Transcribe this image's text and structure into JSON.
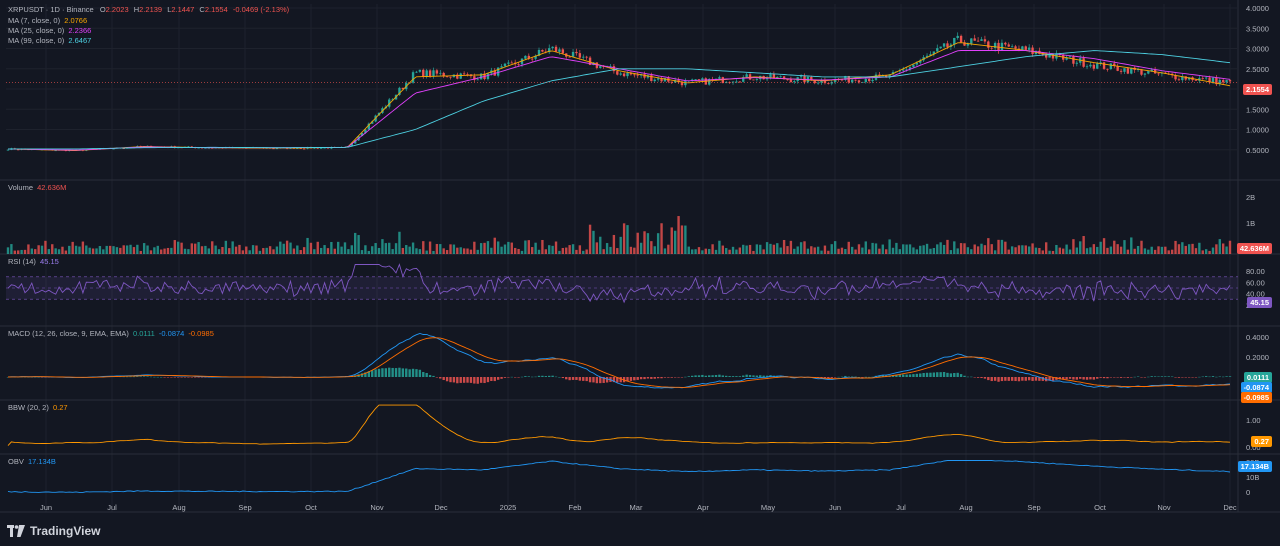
{
  "header": {
    "symbol": "XRPUSDT · 1D · Binance",
    "ohlc": [
      {
        "k": "O",
        "v": "2.2023"
      },
      {
        "k": "H",
        "v": "2.2139"
      },
      {
        "k": "L",
        "v": "2.1447"
      },
      {
        "k": "C",
        "v": "2.1554"
      }
    ],
    "change": "-0.0469 (-2.13%)"
  },
  "ma": [
    {
      "label": "MA (7, close, 0)",
      "value": "2.0766",
      "color": "#f7a600"
    },
    {
      "label": "MA (25, close, 0)",
      "value": "2.2366",
      "color": "#e040fb"
    },
    {
      "label": "MA (99, close, 0)",
      "value": "2.6467",
      "color": "#4dd0e1"
    }
  ],
  "panes": {
    "volume": {
      "label": "Volume",
      "value": "42.636M",
      "tag": "42.636M",
      "ticks": [
        "2B",
        "1B"
      ]
    },
    "rsi": {
      "label": "RSI (14)",
      "value": "45.15",
      "tag": "45.15",
      "ticks": [
        "80.00",
        "60.00",
        "40.00",
        "20.00"
      ]
    },
    "macd": {
      "label": "MACD (12, 26, close, 9, EMA, EMA)",
      "v1": "0.0111",
      "v2": "-0.0874",
      "v3": "-0.0985",
      "tags": [
        "0.0111",
        "-0.0874",
        "-0.0985"
      ],
      "ticks": [
        "0.4000",
        "0.2000",
        "0.0000"
      ]
    },
    "bbw": {
      "label": "BBW (20, 2)",
      "value": "0.27",
      "tag": "0.27",
      "ticks": [
        "1.00",
        "0.00"
      ]
    },
    "obv": {
      "label": "OBV",
      "value": "17.134B",
      "tag": "17.134B",
      "ticks": [
        "20B",
        "10B",
        "0"
      ]
    }
  },
  "price_tag": "2.1554",
  "price_ticks": [
    "4.0000",
    "3.5000",
    "3.0000",
    "2.5000",
    "2.0000",
    "1.5000",
    "1.0000",
    "0.5000"
  ],
  "x_ticks": [
    "Jun",
    "Jul",
    "Aug",
    "Sep",
    "Oct",
    "Nov",
    "Dec",
    "2025",
    "Feb",
    "Mar",
    "Apr",
    "May",
    "Jun",
    "Jul",
    "Aug",
    "Sep",
    "Oct",
    "Nov",
    "Dec"
  ],
  "logo": "TradingView",
  "colors": {
    "up": "#26a69a",
    "down": "#ef5350",
    "bg": "#131722",
    "grid": "#1e222d",
    "text": "#b2b5be"
  },
  "chart_data": {
    "type": "line",
    "title": "XRPUSDT · 1D · Binance",
    "xlabel": "",
    "ylabel": "",
    "ylim": [
      0.0,
      4.0
    ],
    "x": [
      "Jun",
      "Jul",
      "Aug",
      "Sep",
      "Oct",
      "Nov",
      "Dec",
      "2025",
      "Feb",
      "Mar",
      "Apr",
      "May",
      "Jun",
      "Jul",
      "Aug",
      "Sep",
      "Oct",
      "Nov",
      "Dec"
    ],
    "series": [
      {
        "name": "close",
        "values": [
          0.52,
          0.48,
          0.58,
          0.55,
          0.54,
          0.55,
          2.4,
          2.3,
          3.0,
          2.4,
          2.15,
          2.3,
          2.2,
          2.3,
          3.2,
          2.95,
          2.6,
          2.35,
          2.16
        ]
      },
      {
        "name": "MA (7, close, 0)",
        "values": [
          0.52,
          0.48,
          0.58,
          0.55,
          0.54,
          0.56,
          2.3,
          2.35,
          2.95,
          2.45,
          2.15,
          2.3,
          2.2,
          2.35,
          3.15,
          2.95,
          2.65,
          2.4,
          2.08
        ]
      },
      {
        "name": "MA (25, close, 0)",
        "values": [
          0.52,
          0.49,
          0.57,
          0.55,
          0.55,
          0.56,
          1.9,
          2.3,
          2.8,
          2.5,
          2.2,
          2.28,
          2.22,
          2.3,
          2.95,
          2.95,
          2.75,
          2.45,
          2.24
        ]
      },
      {
        "name": "MA (99, close, 0)",
        "values": [
          0.52,
          0.52,
          0.55,
          0.56,
          0.55,
          0.56,
          1.0,
          1.7,
          2.2,
          2.5,
          2.5,
          2.4,
          2.3,
          2.3,
          2.55,
          2.8,
          2.95,
          2.85,
          2.65
        ]
      }
    ]
  }
}
